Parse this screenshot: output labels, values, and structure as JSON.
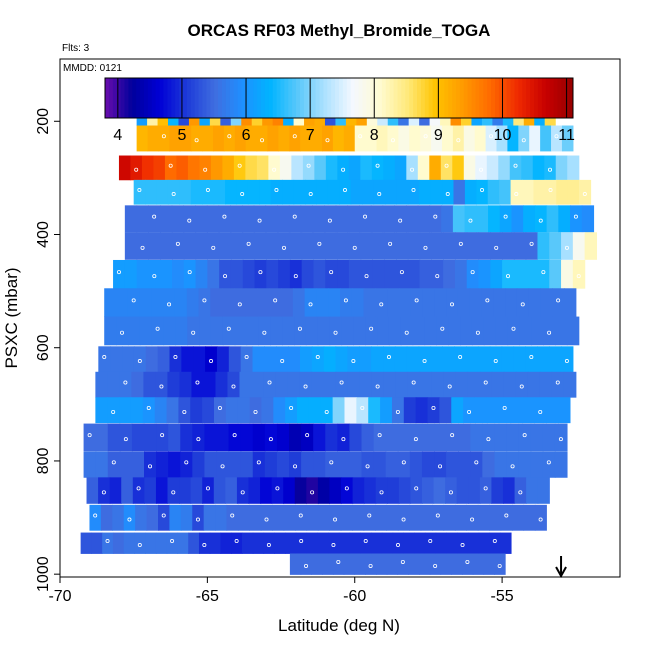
{
  "chart_data": {
    "type": "heatmap",
    "title": "ORCAS RF03 Methyl_Bromide_TOGA",
    "flights_label": "Flts: 3",
    "date_label": "MMDD: 0121",
    "xlabel": "Latitude (deg N)",
    "ylabel": "PSXC (mbar)",
    "xlim": [
      -70,
      -51
    ],
    "ylim": [
      1005,
      90
    ],
    "x_ticks": [
      -70,
      -65,
      -60,
      -55
    ],
    "y_ticks": [
      200,
      400,
      600,
      800,
      1000
    ],
    "colorbar": {
      "min": 3.8,
      "max": 11.1,
      "ticks": [
        4,
        5,
        6,
        7,
        8,
        9,
        10,
        11
      ],
      "colors": [
        "#6a0dad",
        "#00009c",
        "#0000d6",
        "#1e3cd8",
        "#3f6ee0",
        "#1e90ff",
        "#00b4ff",
        "#5ac8fa",
        "#aee2ff",
        "#f4f8ff",
        "#fffbd0",
        "#ffe97a",
        "#ffc400",
        "#ff9a00",
        "#ff6a00",
        "#ef2a00",
        "#c80000",
        "#960000"
      ]
    },
    "arrow_latitude": -53,
    "grid": false,
    "legend": "none",
    "bands": [
      {
        "pressure": 185,
        "lat_start": -67.4,
        "lat_end": -53.2,
        "values": [
          6.1,
          8.3,
          9.0,
          6.4,
          5.2,
          9.4,
          6.2,
          8.7,
          5.4,
          7.0,
          9.5,
          8.8,
          9.4,
          9.6,
          6.3,
          8.1,
          9.3,
          9.2,
          5.3,
          6.6,
          9.1,
          9.3,
          8.0,
          7.4,
          6.6,
          5.6,
          7.5,
          5.5,
          7.7,
          8.2,
          9.5,
          8.8,
          6.2,
          6.6,
          5.7,
          6.5,
          8.5,
          9.2,
          6.3,
          8.7
        ]
      },
      {
        "pressure": 230,
        "lat_start": -67.4,
        "lat_end": -52.6,
        "values": [
          9.1,
          9.2,
          9.2,
          9.3,
          9.3,
          9.2,
          9.2,
          9.3,
          9.2,
          9.3,
          9.2,
          9.2,
          9.3,
          9.2,
          9.3,
          9.2,
          9.2,
          9.3,
          9.1,
          9.2,
          8.1,
          8.1,
          8.2,
          8.1,
          7.9,
          8.1,
          8.0,
          7.8,
          8.1,
          8.3,
          7.9,
          8.1,
          7.5,
          7.2,
          6.4,
          7.0,
          7.6,
          6.7,
          7.3,
          6.9
        ]
      },
      {
        "pressure": 282,
        "lat_start": -68.0,
        "lat_end": -52.4,
        "values": [
          10.6,
          10.4,
          10.2,
          10.1,
          9.8,
          9.9,
          9.7,
          9.6,
          9.4,
          9.2,
          8.9,
          8.7,
          8.6,
          8.1,
          7.8,
          7.3,
          7.1,
          6.8,
          6.5,
          6.3,
          6.2,
          6.5,
          6.4,
          6.3,
          6.2,
          7.2,
          8.1,
          9.2,
          8.6,
          8.9,
          7.9,
          7.6,
          7.4,
          7.1,
          6.7,
          6.6,
          6.4,
          6.5,
          7.0,
          7.2
        ]
      },
      {
        "pressure": 325,
        "lat_start": -67.5,
        "lat_end": -52.0,
        "values": [
          6.6,
          6.6,
          6.6,
          6.6,
          6.6,
          6.5,
          6.5,
          6.5,
          6.4,
          6.4,
          6.4,
          6.4,
          6.3,
          6.3,
          6.3,
          6.3,
          6.3,
          6.3,
          6.3,
          6.2,
          6.2,
          6.2,
          6.2,
          6.2,
          6.2,
          6.3,
          6.3,
          6.3,
          5.6,
          6.3,
          6.4,
          6.6,
          6.7,
          8.2,
          8.2,
          8.3,
          8.3,
          8.4,
          8.4,
          8.3
        ]
      },
      {
        "pressure": 372,
        "lat_start": -67.8,
        "lat_end": -51.9,
        "values": [
          5.5,
          5.5,
          5.5,
          5.5,
          5.5,
          5.5,
          5.5,
          5.5,
          5.5,
          5.5,
          5.5,
          5.5,
          5.5,
          5.5,
          5.5,
          5.5,
          5.5,
          5.5,
          5.5,
          5.5,
          5.5,
          5.5,
          5.5,
          5.5,
          5.5,
          5.5,
          5.5,
          5.6,
          6.7,
          6.6,
          6.6,
          6.4,
          6.2,
          6.0,
          6.3,
          6.4,
          6.6,
          6.3,
          6.0,
          5.9
        ]
      },
      {
        "pressure": 420,
        "lat_start": -67.8,
        "lat_end": -51.8,
        "values": [
          5.5,
          5.5,
          5.5,
          5.5,
          5.5,
          5.5,
          5.5,
          5.5,
          5.5,
          5.5,
          5.5,
          5.5,
          5.5,
          5.5,
          5.5,
          5.5,
          5.5,
          5.5,
          5.5,
          5.5,
          5.5,
          5.5,
          5.5,
          5.5,
          5.5,
          5.5,
          5.5,
          5.5,
          5.5,
          5.5,
          5.5,
          5.5,
          5.5,
          5.5,
          5.5,
          6.6,
          6.8,
          7.2,
          7.8,
          8.2
        ]
      },
      {
        "pressure": 470,
        "lat_start": -68.2,
        "lat_end": -52.2,
        "values": [
          6.1,
          6.1,
          6.0,
          6.0,
          6.0,
          5.9,
          6.0,
          5.8,
          5.6,
          5.3,
          5.3,
          5.2,
          5.1,
          5.2,
          5.1,
          5.0,
          5.2,
          5.3,
          5.2,
          5.2,
          5.3,
          5.3,
          5.3,
          5.3,
          5.3,
          5.3,
          5.4,
          5.4,
          5.5,
          5.6,
          5.9,
          6.0,
          6.2,
          6.5,
          6.5,
          6.5,
          6.5,
          6.8,
          7.9,
          8.2
        ]
      },
      {
        "pressure": 520,
        "lat_start": -68.5,
        "lat_end": -52.5,
        "values": [
          5.8,
          5.8,
          5.8,
          5.8,
          5.8,
          5.8,
          5.8,
          5.7,
          5.6,
          5.5,
          5.5,
          5.5,
          5.5,
          5.5,
          5.5,
          5.5,
          5.6,
          5.8,
          5.8,
          5.8,
          5.7,
          5.7,
          5.6,
          5.6,
          5.6,
          5.6,
          5.6,
          5.6,
          5.6,
          5.6,
          5.6,
          5.6,
          5.6,
          5.6,
          5.6,
          5.6,
          5.6,
          5.6,
          5.6,
          5.6
        ]
      },
      {
        "pressure": 570,
        "lat_start": -68.5,
        "lat_end": -52.4,
        "values": [
          5.7,
          5.7,
          5.7,
          5.7,
          5.7,
          5.7,
          5.7,
          5.6,
          5.6,
          5.6,
          5.6,
          5.6,
          5.6,
          5.6,
          5.6,
          5.6,
          5.6,
          5.6,
          5.6,
          5.6,
          5.6,
          5.6,
          5.6,
          5.6,
          5.6,
          5.6,
          5.6,
          5.6,
          5.6,
          5.6,
          5.6,
          5.6,
          5.6,
          5.6,
          5.6,
          5.6,
          5.6,
          5.6,
          5.6,
          5.6
        ]
      },
      {
        "pressure": 620,
        "lat_start": -68.7,
        "lat_end": -52.6,
        "values": [
          5.6,
          5.6,
          5.6,
          5.6,
          5.5,
          5.4,
          5.0,
          4.8,
          4.8,
          4.6,
          4.9,
          5.3,
          5.6,
          5.9,
          5.9,
          5.9,
          5.9,
          6.1,
          6.2,
          6.3,
          6.2,
          6.1,
          6.1,
          6.2,
          6.2,
          6.2,
          6.2,
          6.2,
          6.2,
          6.2,
          6.2,
          6.2,
          6.2,
          6.2,
          6.2,
          6.2,
          6.2,
          6.2,
          6.2,
          6.2
        ]
      },
      {
        "pressure": 665,
        "lat_start": -68.8,
        "lat_end": -52.5,
        "values": [
          5.6,
          5.6,
          5.6,
          5.5,
          5.3,
          5.3,
          5.1,
          5.0,
          4.8,
          4.8,
          5.0,
          5.2,
          5.6,
          5.6,
          5.6,
          5.6,
          5.6,
          5.6,
          5.6,
          5.6,
          5.6,
          5.6,
          5.6,
          5.6,
          5.6,
          5.6,
          5.6,
          5.6,
          5.6,
          5.6,
          5.6,
          5.6,
          5.6,
          5.6,
          5.6,
          5.6,
          5.6,
          5.6,
          5.6,
          5.6
        ]
      },
      {
        "pressure": 710,
        "lat_start": -68.8,
        "lat_end": -52.7,
        "values": [
          6.1,
          6.1,
          6.1,
          6.1,
          6.0,
          5.8,
          5.6,
          5.3,
          5.1,
          5.2,
          5.5,
          5.6,
          5.6,
          5.5,
          5.6,
          5.9,
          6.1,
          6.3,
          6.3,
          6.3,
          7.0,
          7.6,
          7.3,
          6.5,
          6.1,
          5.6,
          5.1,
          5.0,
          5.1,
          5.3,
          6.2,
          6.0,
          6.0,
          6.0,
          6.0,
          6.0,
          6.0,
          6.0,
          6.0,
          6.0
        ]
      },
      {
        "pressure": 758,
        "lat_start": -69.2,
        "lat_end": -52.8,
        "values": [
          5.5,
          5.5,
          5.3,
          5.3,
          5.2,
          5.2,
          5.2,
          5.3,
          5.0,
          4.9,
          4.8,
          4.8,
          4.7,
          4.7,
          4.6,
          4.7,
          4.6,
          4.4,
          4.5,
          4.8,
          5.0,
          4.9,
          5.2,
          5.4,
          5.5,
          5.5,
          5.5,
          5.5,
          5.5,
          5.5,
          5.5,
          5.5,
          5.6,
          5.6,
          5.6,
          5.6,
          5.6,
          5.6,
          5.6,
          5.6
        ]
      },
      {
        "pressure": 806,
        "lat_start": -69.2,
        "lat_end": -52.8,
        "values": [
          5.6,
          5.6,
          5.4,
          5.4,
          5.4,
          5.0,
          4.9,
          4.8,
          4.9,
          5.1,
          5.3,
          5.3,
          5.3,
          5.3,
          5.0,
          5.1,
          5.2,
          5.1,
          5.3,
          5.3,
          5.4,
          5.4,
          5.4,
          5.3,
          5.3,
          5.4,
          5.4,
          5.3,
          5.2,
          5.2,
          5.3,
          5.3,
          5.3,
          5.5,
          5.6,
          5.6,
          5.6,
          5.6,
          5.6,
          5.6
        ]
      },
      {
        "pressure": 852,
        "lat_start": -69.1,
        "lat_end": -53.4,
        "values": [
          5.4,
          5.0,
          4.9,
          5.4,
          5.0,
          5.1,
          4.8,
          5.1,
          5.1,
          5.2,
          4.9,
          5.3,
          5.4,
          5.0,
          4.9,
          4.7,
          4.8,
          4.6,
          4.2,
          4.1,
          4.3,
          4.5,
          4.7,
          4.9,
          5.0,
          5.1,
          5.1,
          5.2,
          5.3,
          5.4,
          5.5,
          5.4,
          5.3,
          5.3,
          5.4,
          5.1,
          5.0,
          5.4,
          5.6,
          5.6
        ]
      },
      {
        "pressure": 900,
        "lat_start": -69.0,
        "lat_end": -53.5,
        "values": [
          5.9,
          5.5,
          5.6,
          5.9,
          5.6,
          5.5,
          5.2,
          5.8,
          5.7,
          5.2,
          5.6,
          5.6,
          5.5,
          5.5,
          5.5,
          5.5,
          5.5,
          5.5,
          5.5,
          5.5,
          5.5,
          5.5,
          5.5,
          5.5,
          5.5,
          5.5,
          5.5,
          5.5,
          5.5,
          5.5,
          5.5,
          5.5,
          5.5,
          5.5,
          5.5,
          5.5,
          5.5,
          5.5,
          5.5,
          5.5
        ]
      },
      {
        "pressure": 945,
        "lat_start": -69.3,
        "lat_end": -54.7,
        "values": [
          5.3,
          5.3,
          5.6,
          5.5,
          5.6,
          5.6,
          5.6,
          5.6,
          5.6,
          5.6,
          5.3,
          5.0,
          5.0,
          4.9,
          4.9,
          5.0,
          5.0,
          5.0,
          5.0,
          5.0,
          5.0,
          5.0,
          5.0,
          5.0,
          5.0,
          5.0,
          5.0,
          5.0,
          5.0,
          5.0,
          5.0,
          5.0,
          5.0,
          5.0,
          5.0,
          5.0,
          5.0,
          5.0,
          5.0,
          5.0
        ]
      },
      {
        "pressure": 982,
        "lat_start": -62.2,
        "lat_end": -54.9,
        "values": [
          5.5,
          5.5,
          5.5,
          5.5,
          5.5,
          5.5,
          5.5,
          5.5,
          5.5,
          5.5,
          5.5,
          5.5,
          5.5,
          5.5,
          5.5,
          5.5,
          5.5,
          5.5,
          5.5,
          5.5
        ]
      }
    ]
  }
}
